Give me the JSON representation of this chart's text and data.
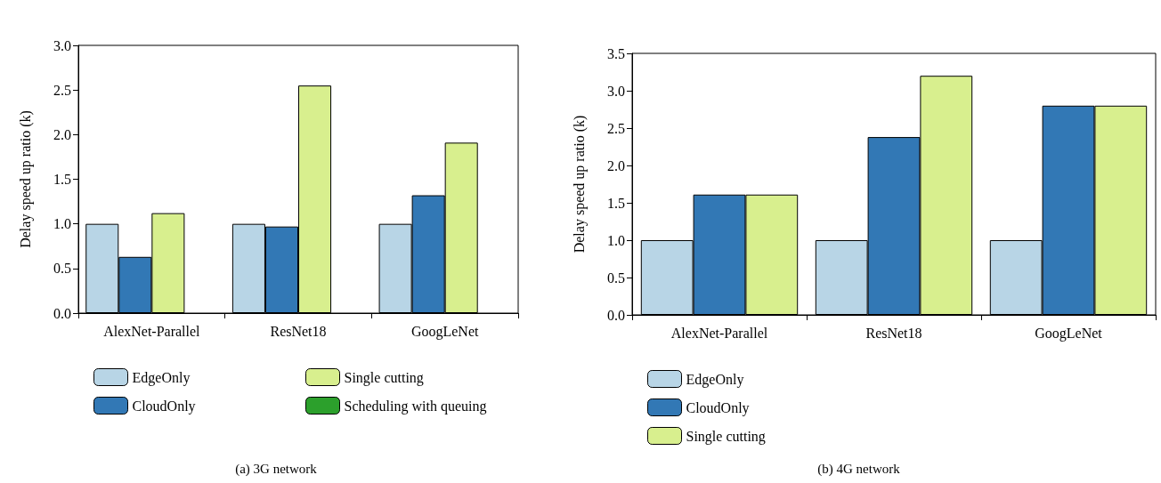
{
  "chart_data": [
    {
      "type": "bar",
      "title": "(a) 3G network",
      "ylabel": "Delay speed up ratio (k)",
      "categories": [
        "AlexNet-Parallel",
        "ResNet18",
        "GoogLeNet"
      ],
      "series": [
        {
          "name": "EdgeOnly",
          "color": "#b8d5e6",
          "values": [
            1.0,
            1.0,
            1.0
          ]
        },
        {
          "name": "CloudOnly",
          "color": "#3278b5",
          "values": [
            0.63,
            0.97,
            1.32
          ]
        },
        {
          "name": "Single cutting",
          "color": "#d8ef8e",
          "values": [
            1.12,
            2.55,
            1.91
          ]
        },
        {
          "name": "Scheduling with queuing",
          "color": "#2ca02c",
          "values": [
            null,
            null,
            null
          ]
        }
      ],
      "ylim": [
        0,
        3
      ],
      "yticks": [
        {
          "value": 0,
          "label": "0.0"
        },
        {
          "value": 0.5,
          "label": "0.5"
        },
        {
          "value": 1,
          "label": "1.0"
        },
        {
          "value": 1.5,
          "label": "1.5"
        },
        {
          "value": 2,
          "label": "2.0"
        },
        {
          "value": 2.5,
          "label": "2.5"
        },
        {
          "value": 3,
          "label": "3.0"
        }
      ],
      "legend": "bottom"
    },
    {
      "type": "bar",
      "title": "(b) 4G network",
      "ylabel": "Delay speed up ratio (k)",
      "categories": [
        "AlexNet-Parallel",
        "ResNet18",
        "GoogLeNet"
      ],
      "series": [
        {
          "name": "EdgeOnly",
          "color": "#b8d5e6",
          "values": [
            1.0,
            1.0,
            1.0
          ]
        },
        {
          "name": "CloudOnly",
          "color": "#3278b5",
          "values": [
            1.61,
            2.38,
            2.8
          ]
        },
        {
          "name": "Single cutting",
          "color": "#d8ef8e",
          "values": [
            1.61,
            3.2,
            2.8
          ]
        }
      ],
      "ylim": [
        0,
        3.5
      ],
      "yticks": [
        {
          "value": 0,
          "label": "0.0"
        },
        {
          "value": 0.5,
          "label": "0.5"
        },
        {
          "value": 1,
          "label": "1.0"
        },
        {
          "value": 1.5,
          "label": "1.5"
        },
        {
          "value": 2,
          "label": "2.0"
        },
        {
          "value": 2.5,
          "label": "2.5"
        },
        {
          "value": 3,
          "label": "3.0"
        },
        {
          "value": 3.5,
          "label": "3.5"
        }
      ],
      "legend": "bottom"
    }
  ]
}
